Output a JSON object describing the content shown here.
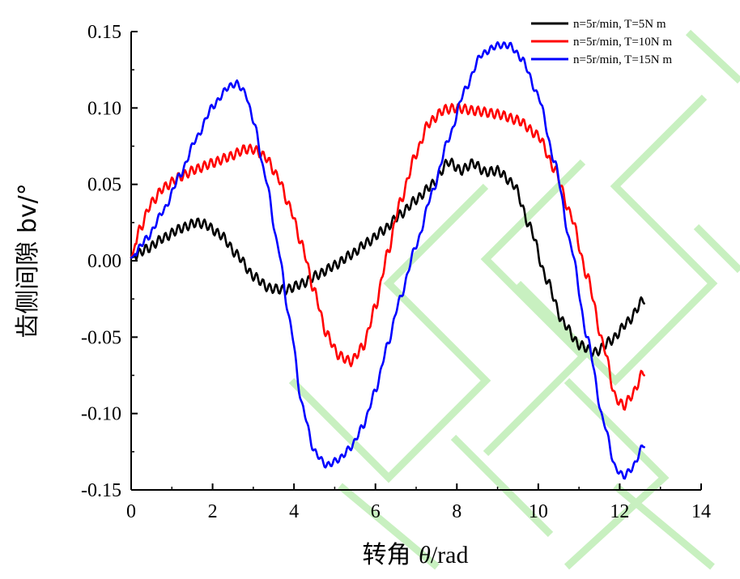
{
  "chart_data": {
    "type": "line",
    "title": "",
    "xlabel_prefix": "转角 ",
    "xlabel_symbol": "θ",
    "xlabel_unit": "/rad",
    "ylabel": "齿侧间隙 bv/°",
    "xlim": [
      0,
      14
    ],
    "ylim": [
      -0.15,
      0.15
    ],
    "x_ticks": [
      0,
      2,
      4,
      6,
      8,
      10,
      12,
      14
    ],
    "x_tick_labels": [
      "0",
      "2",
      "4",
      "6",
      "8",
      "10",
      "12",
      "14"
    ],
    "y_ticks": [
      0.15,
      0.1,
      0.05,
      0.0,
      -0.05,
      -0.1,
      -0.15
    ],
    "y_tick_labels": [
      "0.15",
      "0.10",
      "0.05",
      "0.00",
      "-0.05",
      "-0.10",
      "-0.15"
    ],
    "grid": false,
    "legend_position": "top-right",
    "series": [
      {
        "name": "n=5r/min, T=5N m",
        "color": "#000000",
        "ripple": 0.003,
        "points": [
          [
            0,
            0.002
          ],
          [
            0.4,
            0.008
          ],
          [
            0.8,
            0.015
          ],
          [
            1.2,
            0.021
          ],
          [
            1.6,
            0.025
          ],
          [
            1.8,
            0.024
          ],
          [
            2.2,
            0.017
          ],
          [
            2.6,
            0.004
          ],
          [
            3.0,
            -0.01
          ],
          [
            3.4,
            -0.018
          ],
          [
            3.8,
            -0.019
          ],
          [
            4.2,
            -0.015
          ],
          [
            4.6,
            -0.009
          ],
          [
            5.0,
            -0.003
          ],
          [
            5.4,
            0.004
          ],
          [
            5.8,
            0.012
          ],
          [
            6.2,
            0.02
          ],
          [
            6.6,
            0.03
          ],
          [
            7.0,
            0.04
          ],
          [
            7.4,
            0.05
          ],
          [
            7.8,
            0.065
          ],
          [
            8.1,
            0.059
          ],
          [
            8.4,
            0.064
          ],
          [
            8.7,
            0.058
          ],
          [
            9.0,
            0.059
          ],
          [
            9.4,
            0.05
          ],
          [
            9.8,
            0.022
          ],
          [
            10.2,
            -0.012
          ],
          [
            10.6,
            -0.04
          ],
          [
            11.0,
            -0.055
          ],
          [
            11.4,
            -0.06
          ],
          [
            11.8,
            -0.052
          ],
          [
            12.2,
            -0.04
          ],
          [
            12.6,
            -0.025
          ]
        ]
      },
      {
        "name": "n=5r/min, T=10N m",
        "color": "#ff0000",
        "ripple": 0.003,
        "points": [
          [
            0,
            0.002
          ],
          [
            0.2,
            0.02
          ],
          [
            0.5,
            0.038
          ],
          [
            0.8,
            0.048
          ],
          [
            1.2,
            0.055
          ],
          [
            1.6,
            0.06
          ],
          [
            2.0,
            0.064
          ],
          [
            2.4,
            0.068
          ],
          [
            2.8,
            0.073
          ],
          [
            3.0,
            0.073
          ],
          [
            3.3,
            0.068
          ],
          [
            3.6,
            0.055
          ],
          [
            3.9,
            0.035
          ],
          [
            4.2,
            0.01
          ],
          [
            4.5,
            -0.02
          ],
          [
            4.8,
            -0.048
          ],
          [
            5.1,
            -0.062
          ],
          [
            5.4,
            -0.066
          ],
          [
            5.7,
            -0.056
          ],
          [
            6.0,
            -0.03
          ],
          [
            6.3,
            0.005
          ],
          [
            6.6,
            0.038
          ],
          [
            7.0,
            0.07
          ],
          [
            7.3,
            0.09
          ],
          [
            7.7,
            0.099
          ],
          [
            8.0,
            0.1
          ],
          [
            8.5,
            0.098
          ],
          [
            9.0,
            0.096
          ],
          [
            9.5,
            0.092
          ],
          [
            10.0,
            0.082
          ],
          [
            10.4,
            0.06
          ],
          [
            10.8,
            0.03
          ],
          [
            11.2,
            -0.01
          ],
          [
            11.6,
            -0.055
          ],
          [
            11.9,
            -0.09
          ],
          [
            12.1,
            -0.095
          ],
          [
            12.3,
            -0.088
          ],
          [
            12.6,
            -0.072
          ]
        ]
      },
      {
        "name": "n=5r/min, T=15N m",
        "color": "#0000ff",
        "ripple": 0.002,
        "points": [
          [
            0,
            0.002
          ],
          [
            0.4,
            0.015
          ],
          [
            0.8,
            0.033
          ],
          [
            1.2,
            0.056
          ],
          [
            1.6,
            0.08
          ],
          [
            2.0,
            0.101
          ],
          [
            2.4,
            0.114
          ],
          [
            2.6,
            0.116
          ],
          [
            2.8,
            0.11
          ],
          [
            3.0,
            0.092
          ],
          [
            3.3,
            0.055
          ],
          [
            3.6,
            0.01
          ],
          [
            3.9,
            -0.04
          ],
          [
            4.2,
            -0.095
          ],
          [
            4.5,
            -0.125
          ],
          [
            4.8,
            -0.134
          ],
          [
            5.1,
            -0.13
          ],
          [
            5.4,
            -0.122
          ],
          [
            5.7,
            -0.108
          ],
          [
            6.0,
            -0.085
          ],
          [
            6.3,
            -0.055
          ],
          [
            6.6,
            -0.025
          ],
          [
            7.0,
            0.01
          ],
          [
            7.4,
            0.045
          ],
          [
            7.8,
            0.08
          ],
          [
            8.2,
            0.112
          ],
          [
            8.6,
            0.135
          ],
          [
            9.0,
            0.141
          ],
          [
            9.3,
            0.141
          ],
          [
            9.6,
            0.132
          ],
          [
            10.0,
            0.108
          ],
          [
            10.4,
            0.065
          ],
          [
            10.8,
            0.01
          ],
          [
            11.2,
            -0.05
          ],
          [
            11.6,
            -0.105
          ],
          [
            11.9,
            -0.136
          ],
          [
            12.1,
            -0.141
          ],
          [
            12.3,
            -0.136
          ],
          [
            12.6,
            -0.12
          ]
        ]
      }
    ]
  }
}
